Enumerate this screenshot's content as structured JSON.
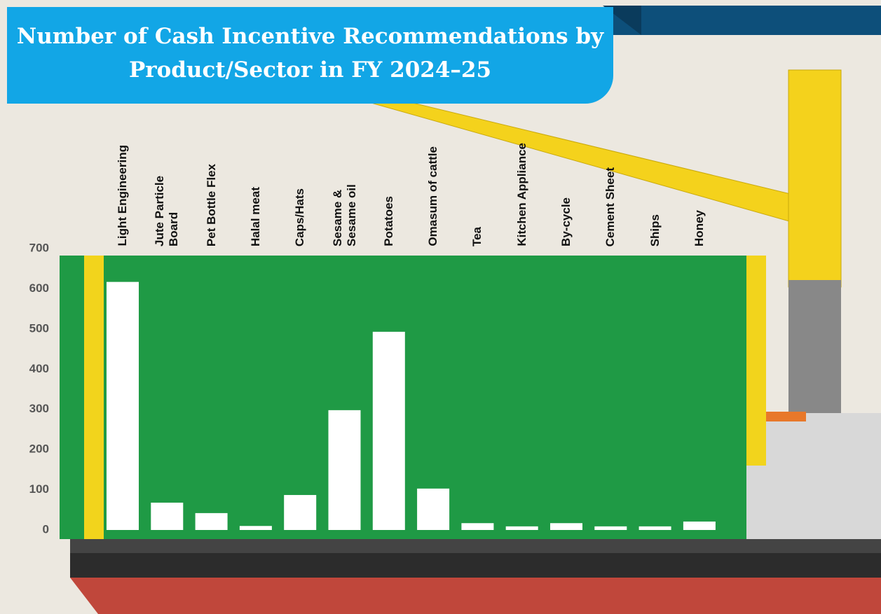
{
  "chart_data": {
    "type": "bar",
    "title": "Number of Cash Incentive Recommendations by Product/Sector in FY 2024–25",
    "categories": [
      "Light Engineering",
      "Jute Particle Board",
      "Pet Bottle Flex",
      "Halal meat",
      "Caps/Hats",
      "Sesame & Sesame oil",
      "Potatoes",
      "Omasum of cattle",
      "Tea",
      "Kitchen Appliance",
      "By-cycle",
      "Cement Sheet",
      "Ships",
      "Honey"
    ],
    "values": [
      617,
      68,
      42,
      10,
      87,
      298,
      493,
      103,
      17,
      9,
      17,
      9,
      9,
      21
    ],
    "color": "#ffffff",
    "ylim": [
      0,
      700
    ],
    "yticks": [
      0,
      100,
      200,
      300,
      400,
      500,
      600,
      700
    ],
    "grid": false
  }
}
